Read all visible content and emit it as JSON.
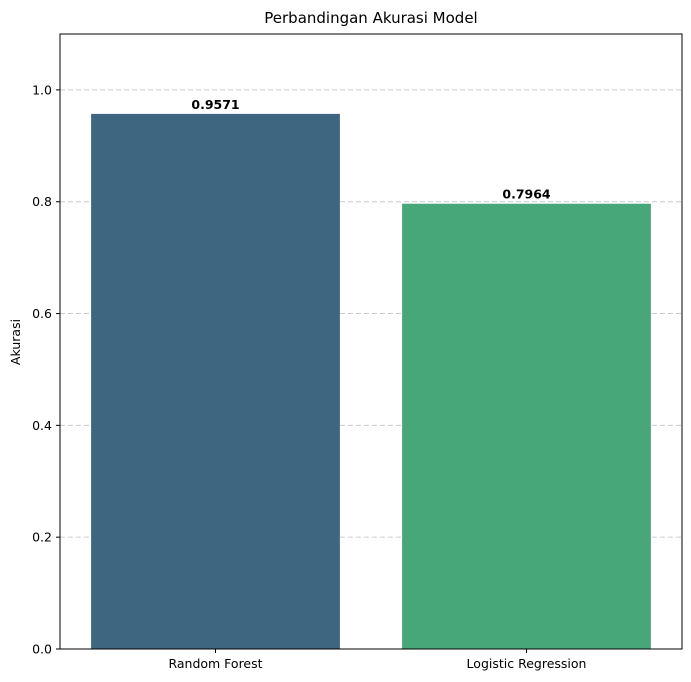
{
  "chart_data": {
    "type": "bar",
    "title": "Perbandingan Akurasi Model",
    "xlabel": "",
    "ylabel": "Akurasi",
    "categories": [
      "Random Forest",
      "Logistic Regression"
    ],
    "values": [
      0.9571,
      0.7964
    ],
    "data_labels": [
      "0.9571",
      "0.7964"
    ],
    "bar_colors": [
      "#3e6680",
      "#47a778"
    ],
    "ylim": [
      0,
      1.1
    ],
    "yticks": [
      0.0,
      0.2,
      0.4,
      0.6,
      0.8,
      1.0
    ],
    "ytick_labels": [
      "0.0",
      "0.2",
      "0.4",
      "0.6",
      "0.8",
      "1.0"
    ],
    "grid": "y-dashed",
    "legend": "none"
  }
}
